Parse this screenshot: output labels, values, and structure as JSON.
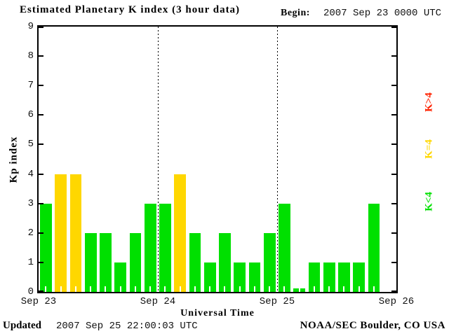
{
  "header": {
    "title": "Estimated Planetary K index (3 hour data)",
    "begin_label": "Begin:",
    "begin_value": "2007 Sep 23 0000 UTC"
  },
  "footer": {
    "updated_label": "Updated",
    "updated_value": "2007 Sep 25 22:00:03 UTC",
    "credit": "NOAA/SEC Boulder, CO USA"
  },
  "chart_data": {
    "type": "bar",
    "title": "Estimated Planetary K index (3 hour data)",
    "xlabel": "Universal Time",
    "ylabel": "Kp index",
    "ylim": [
      0,
      9
    ],
    "yticks": [
      0,
      1,
      2,
      3,
      4,
      5,
      6,
      7,
      8,
      9
    ],
    "x_tick_labels": [
      "Sep 23",
      "Sep 24",
      "Sep 25",
      "Sep 26"
    ],
    "interval_hours": 3,
    "slots_per_day": 8,
    "grid": "dotted vertical lines at day boundaries Sep 24 and Sep 25",
    "days": [
      {
        "label": "Sep 23",
        "values": [
          3,
          4,
          4,
          2,
          2,
          1,
          2,
          3
        ]
      },
      {
        "label": "Sep 24",
        "values": [
          3,
          4,
          2,
          1,
          2,
          1,
          1,
          2
        ]
      },
      {
        "label": "Sep 25",
        "values": [
          3,
          0,
          1,
          1,
          1,
          1,
          3
        ]
      }
    ],
    "values_flat": [
      3,
      4,
      4,
      2,
      2,
      1,
      2,
      3,
      3,
      4,
      2,
      1,
      2,
      1,
      1,
      2,
      3,
      0,
      1,
      1,
      1,
      1,
      3
    ],
    "legend": [
      {
        "label": "K>4",
        "color": "#ff2200",
        "position": "right-top"
      },
      {
        "label": "K=4",
        "color": "#ffd700",
        "position": "right-middle"
      },
      {
        "label": "K<4",
        "color": "#00e000",
        "position": "right-bottom"
      }
    ],
    "threshold_colors": {
      "k_gt_4": "#ff2200",
      "k_eq_4": "#ffd700",
      "k_lt_4": "#00e000"
    },
    "axis_color": "#000000",
    "background_color": "#ffffff"
  }
}
